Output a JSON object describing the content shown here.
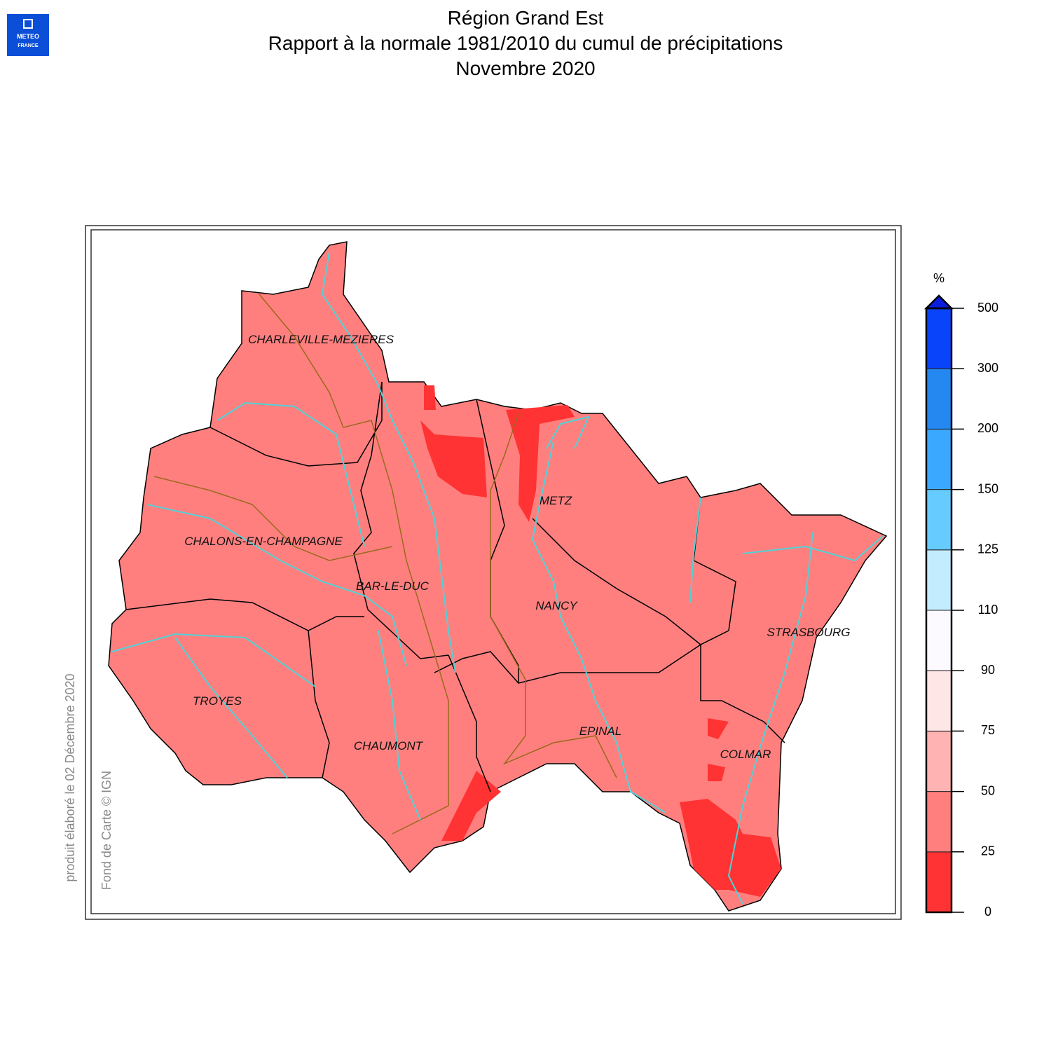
{
  "header": {
    "title_lines": [
      "Région Grand Est",
      "Rapport à la normale 1981/2010 du cumul de précipitations",
      "Novembre 2020"
    ]
  },
  "logo": {
    "lines": [
      "METEO",
      "FRANCE"
    ]
  },
  "map": {
    "cities": [
      "CHARLEVILLE-MEZIERES",
      "CHALONS-EN-CHAMPAGNE",
      "BAR-LE-DUC",
      "METZ",
      "NANCY",
      "STRASBOURG",
      "TROYES",
      "CHAUMONT",
      "EPINAL",
      "COLMAR"
    ]
  },
  "legend": {
    "unit": "%",
    "ticks": [
      0,
      25,
      50,
      75,
      90,
      110,
      125,
      150,
      200,
      300,
      500
    ],
    "colors": [
      "#ff3333",
      "#ff7f7f",
      "#ffb3b3",
      "#ffe6e6",
      "#fcfaff",
      "#c4ecff",
      "#66ccff",
      "#3aa8ff",
      "#2488f0",
      "#0a44fa"
    ],
    "overflow_color": "#0a1ee0"
  },
  "footer": {
    "produced": "produit élaboré le 02 Décembre 2020",
    "basemap": "Fond de Carte © IGN"
  }
}
